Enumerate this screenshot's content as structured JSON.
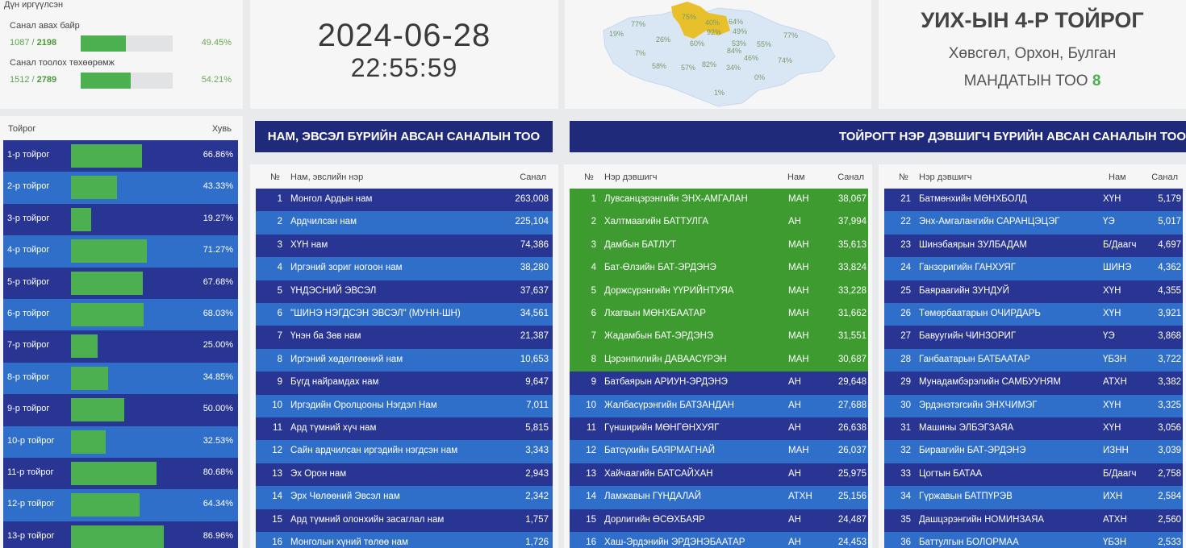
{
  "summary": {
    "header": "Дүн иргүүлсэн",
    "rows": [
      {
        "label": "Санал авах байр",
        "done": "1087",
        "total": "2198",
        "pct": "49.45%",
        "fill": 0.4945
      },
      {
        "label": "Санал тоолох төхөөрөмж",
        "done": "1512",
        "total": "2789",
        "pct": "54.21%",
        "fill": 0.5421
      }
    ]
  },
  "clock": {
    "date": "2024-06-28",
    "time": "22:55:59"
  },
  "map": {
    "labels": [
      "77%",
      "75%",
      "40%",
      "64%",
      "19%",
      "26%",
      "92%",
      "49%",
      "77%",
      "60%",
      "53%",
      "55%",
      "7%",
      "84%",
      "46%",
      "74%",
      "58%",
      "57%",
      "82%",
      "34%",
      "0%",
      "1%"
    ],
    "region_color": "#d9e7f5",
    "highlight_color": "#e8c02c"
  },
  "district": {
    "title": "УИХ-ЫН 4-Р ТОЙРОГ",
    "provinces": "Хөвсгөл, Орхон, Булган",
    "mandate_label": "МАНДАТЫН ТОО",
    "mandate_count": "8"
  },
  "district_list": {
    "col_name": "Тойрог",
    "col_pct": "Хувь",
    "rows": [
      {
        "name": "1-р тойрог",
        "pct": "66.86%",
        "fill": 0.6686
      },
      {
        "name": "2-р тойрог",
        "pct": "43.33%",
        "fill": 0.4333
      },
      {
        "name": "3-р тойрог",
        "pct": "19.27%",
        "fill": 0.1927
      },
      {
        "name": "4-р тойрог",
        "pct": "71.27%",
        "fill": 0.7127
      },
      {
        "name": "5-р тойрог",
        "pct": "67.68%",
        "fill": 0.6768
      },
      {
        "name": "6-р тойрог",
        "pct": "68.03%",
        "fill": 0.6803
      },
      {
        "name": "7-р тойрог",
        "pct": "25.00%",
        "fill": 0.25
      },
      {
        "name": "8-р тойрог",
        "pct": "34.85%",
        "fill": 0.3485
      },
      {
        "name": "9-р тойрог",
        "pct": "50.00%",
        "fill": 0.5
      },
      {
        "name": "10-р тойрог",
        "pct": "32.53%",
        "fill": 0.3253
      },
      {
        "name": "11-р тойрог",
        "pct": "80.68%",
        "fill": 0.8068
      },
      {
        "name": "12-р тойрог",
        "pct": "64.34%",
        "fill": 0.6434
      },
      {
        "name": "13-р тойрог",
        "pct": "86.96%",
        "fill": 0.8696
      }
    ]
  },
  "banners": {
    "party": "НАМ, ЭВСЭЛ БҮРИЙН АВСАН САНАЛЫН ТОО",
    "candidate": "ТОЙРОГТ НЭР ДЭВШИГЧ БҮРИЙН АВСАН САНАЛЫН ТОО"
  },
  "party_table": {
    "col_no": "№",
    "col_name": "Нам, эвслийн нэр",
    "col_votes": "Санал",
    "rows": [
      {
        "no": "1",
        "name": "Монгол Ардын нам",
        "votes": "263,008"
      },
      {
        "no": "2",
        "name": "Ардчилсан нам",
        "votes": "225,104"
      },
      {
        "no": "3",
        "name": "ХҮН нам",
        "votes": "74,386"
      },
      {
        "no": "4",
        "name": "Иргэний зориг ногоон нам",
        "votes": "38,280"
      },
      {
        "no": "5",
        "name": "ҮНДЭСНИЙ ЭВСЭЛ",
        "votes": "37,637"
      },
      {
        "no": "6",
        "name": "\"ШИНЭ НЭГДСЭН ЭВСЭЛ\" (МУНН-ШН)",
        "votes": "34,561"
      },
      {
        "no": "7",
        "name": "Үнэн ба Зөв нам",
        "votes": "21,387"
      },
      {
        "no": "8",
        "name": "Иргэний хөдөлгөөний нам",
        "votes": "10,653"
      },
      {
        "no": "9",
        "name": "Бүгд найрамдах нам",
        "votes": "9,647"
      },
      {
        "no": "10",
        "name": "Иргэдийн Оролцооны Нэгдэл Нам",
        "votes": "7,011"
      },
      {
        "no": "11",
        "name": "Ард түмний хүч нам",
        "votes": "5,815"
      },
      {
        "no": "12",
        "name": "Сайн ардчилсан иргэдийн нэгдсэн нам",
        "votes": "3,343"
      },
      {
        "no": "13",
        "name": "Эх Орон нам",
        "votes": "2,943"
      },
      {
        "no": "14",
        "name": "Эрх Чөлөөний Эвсэл нам",
        "votes": "2,342"
      },
      {
        "no": "15",
        "name": "Ард түмний олонхийн засаглал нам",
        "votes": "1,757"
      },
      {
        "no": "16",
        "name": "Монголын хүний төлөө нам",
        "votes": "1,726"
      }
    ]
  },
  "cand_table_1": {
    "col_no": "№",
    "col_name": "Нэр дэвшигч",
    "col_party": "Нам",
    "col_votes": "Санал",
    "rows": [
      {
        "no": "1",
        "name": "Лувсанцэрэнгийн ЭНХ-АМГАЛАН",
        "party": "МАН",
        "votes": "38,067",
        "win": true
      },
      {
        "no": "2",
        "name": "Халтмаагийн БАТТУЛГА",
        "party": "АН",
        "votes": "37,994",
        "win": true
      },
      {
        "no": "3",
        "name": "Дамбын БАТЛУТ",
        "party": "МАН",
        "votes": "35,613",
        "win": true
      },
      {
        "no": "4",
        "name": "Бат-Өлзийн БАТ-ЭРДЭНЭ",
        "party": "МАН",
        "votes": "33,824",
        "win": true
      },
      {
        "no": "5",
        "name": "Доржсүрэнгийн ҮҮРИЙНТУЯА",
        "party": "МАН",
        "votes": "33,228",
        "win": true
      },
      {
        "no": "6",
        "name": "Лхагвын МӨНХБААТАР",
        "party": "МАН",
        "votes": "31,662",
        "win": true
      },
      {
        "no": "7",
        "name": "Жадамбын БАТ-ЭРДЭНЭ",
        "party": "МАН",
        "votes": "31,551",
        "win": true
      },
      {
        "no": "8",
        "name": "Цэрэнпилийн ДАВААСҮРЭН",
        "party": "МАН",
        "votes": "30,687",
        "win": true
      },
      {
        "no": "9",
        "name": "Батбаярын АРИУН-ЭРДЭНЭ",
        "party": "АН",
        "votes": "29,648",
        "win": false
      },
      {
        "no": "10",
        "name": "Жалбасүрэнгийн БАТЗАНДАН",
        "party": "АН",
        "votes": "27,688",
        "win": false
      },
      {
        "no": "11",
        "name": "Гүнширийн МӨНГӨНХУЯГ",
        "party": "АН",
        "votes": "26,638",
        "win": false
      },
      {
        "no": "12",
        "name": "Батсүхийн БАЯРМАГНАЙ",
        "party": "МАН",
        "votes": "26,037",
        "win": false
      },
      {
        "no": "13",
        "name": "Хайчаагийн БАТСАЙХАН",
        "party": "АН",
        "votes": "25,975",
        "win": false
      },
      {
        "no": "14",
        "name": "Ламжавын ГҮНДАЛАЙ",
        "party": "АТХН",
        "votes": "25,156",
        "win": false
      },
      {
        "no": "15",
        "name": "Дорлигийн ӨСӨХБАЯР",
        "party": "АН",
        "votes": "24,487",
        "win": false
      },
      {
        "no": "16",
        "name": "Хаш-Эрдэнийн ЭРДЭНЭБААТАР",
        "party": "АН",
        "votes": "24,453",
        "win": false
      }
    ]
  },
  "cand_table_2": {
    "col_no": "№",
    "col_name": "Нэр дэвшигч",
    "col_party": "Нам",
    "col_votes": "Санал",
    "rows": [
      {
        "no": "21",
        "name": "Батмөнхийн МӨНХБОЛД",
        "party": "ХҮН",
        "votes": "5,179"
      },
      {
        "no": "22",
        "name": "Энх-Амгалангийн САРАНЦЭЦЭГ",
        "party": "ҮЭ",
        "votes": "5,017"
      },
      {
        "no": "23",
        "name": "Шинэбаярын ЗУЛБАДАМ",
        "party": "Б/Даагч",
        "votes": "4,697"
      },
      {
        "no": "24",
        "name": "Ганзоригийн ГАНХУЯГ",
        "party": "ШИНЭ",
        "votes": "4,362"
      },
      {
        "no": "25",
        "name": "Баяраагийн ЗУНДУЙ",
        "party": "ХҮН",
        "votes": "4,355"
      },
      {
        "no": "26",
        "name": "Төмөрбаатарын ОЧИРДАРЬ",
        "party": "ХҮН",
        "votes": "3,921"
      },
      {
        "no": "27",
        "name": "Бавуугийн ЧИНЗОРИГ",
        "party": "ҮЭ",
        "votes": "3,868"
      },
      {
        "no": "28",
        "name": "Ганбаатарын БАТБААТАР",
        "party": "ҮБЗН",
        "votes": "3,722"
      },
      {
        "no": "29",
        "name": "Мунадамбэрэлийн САМБУУНЯМ",
        "party": "АТХН",
        "votes": "3,382"
      },
      {
        "no": "30",
        "name": "Эрдэнэтэгсийн ЭНХЧИМЭГ",
        "party": "ХҮН",
        "votes": "3,325"
      },
      {
        "no": "31",
        "name": "Машины ЭЛБЭГЗАЯА",
        "party": "ХҮН",
        "votes": "3,056"
      },
      {
        "no": "32",
        "name": "Бираагийн БАТ-ЭРДЭНЭ",
        "party": "ИЗНН",
        "votes": "3,039"
      },
      {
        "no": "33",
        "name": "Цогтын БАТАА",
        "party": "Б/Даагч",
        "votes": "2,758"
      },
      {
        "no": "34",
        "name": "Гүржавын БАТПҮРЭВ",
        "party": "ИХН",
        "votes": "2,584"
      },
      {
        "no": "35",
        "name": "Дашцэрэнгийн НОМИНЗАЯА",
        "party": "АТХН",
        "votes": "2,560"
      },
      {
        "no": "36",
        "name": "Баттулгын БОЛОРМАА",
        "party": "ҮБЗН",
        "votes": "2,533"
      }
    ]
  }
}
